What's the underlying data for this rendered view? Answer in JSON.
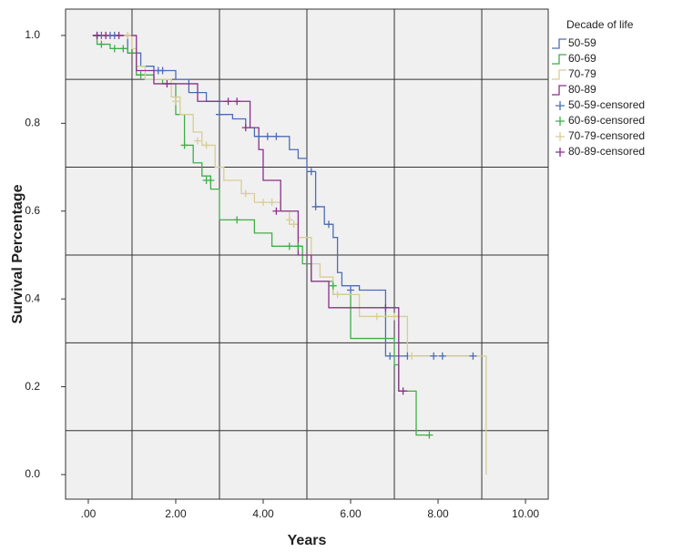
{
  "chart_data": {
    "type": "line",
    "xlabel": "Years",
    "ylabel": "Survival Percentage",
    "legend_title": "Decade of life",
    "xlim": [
      -0.52,
      10.52
    ],
    "ylim": [
      -0.056,
      1.06
    ],
    "xticks": [
      {
        "value": 0,
        "label": ".00"
      },
      {
        "value": 2,
        "label": "2.00"
      },
      {
        "value": 4,
        "label": "4.00"
      },
      {
        "value": 6,
        "label": "6.00"
      },
      {
        "value": 8,
        "label": "8.00"
      },
      {
        "value": 10,
        "label": "10.00"
      }
    ],
    "yticks": [
      {
        "value": 0,
        "label": "0.0"
      },
      0.2,
      0.4,
      0.6,
      0.8,
      {
        "value": 1,
        "label": "1.0"
      }
    ],
    "xgrid": [
      1,
      3,
      5,
      7,
      9
    ],
    "ygrid": [
      0.1,
      0.3,
      0.5,
      0.7,
      0.9
    ],
    "legend": "right",
    "series": [
      {
        "name": "50-59",
        "color": "#4d6db3",
        "mark": "line",
        "x": [
          0.1,
          0.9,
          0.9,
          1.2,
          1.2,
          1.5,
          1.5,
          2.0,
          2.0,
          2.3,
          2.3,
          2.7,
          2.7,
          3.0,
          3.0,
          3.3,
          3.3,
          3.6,
          3.6,
          3.8,
          3.8,
          4.6,
          4.6,
          4.8,
          4.8,
          5.0,
          5.0,
          5.2,
          5.2,
          5.4,
          5.4,
          5.6,
          5.6,
          5.7,
          5.7,
          5.8,
          5.8,
          6.2,
          6.2,
          6.8,
          6.8,
          8.9
        ],
        "values": [
          1.0,
          1.0,
          0.96,
          0.96,
          0.93,
          0.93,
          0.92,
          0.92,
          0.9,
          0.9,
          0.87,
          0.87,
          0.85,
          0.85,
          0.82,
          0.82,
          0.81,
          0.81,
          0.79,
          0.79,
          0.77,
          0.77,
          0.74,
          0.74,
          0.72,
          0.72,
          0.69,
          0.69,
          0.61,
          0.61,
          0.57,
          0.57,
          0.54,
          0.54,
          0.46,
          0.46,
          0.43,
          0.43,
          0.42,
          0.42,
          0.27,
          0.27
        ]
      },
      {
        "name": "60-69",
        "color": "#3fae49",
        "mark": "line",
        "x": [
          0.1,
          0.2,
          0.2,
          0.5,
          0.5,
          0.9,
          0.9,
          1.1,
          1.1,
          1.5,
          1.5,
          1.7,
          1.7,
          2.0,
          2.0,
          2.2,
          2.2,
          2.4,
          2.4,
          2.6,
          2.6,
          2.8,
          2.8,
          3.0,
          3.0,
          3.8,
          3.8,
          4.2,
          4.2,
          4.9,
          4.9,
          5.1,
          5.1,
          5.6,
          5.6,
          6.0,
          6.0,
          7.0,
          7.0,
          7.1,
          7.1,
          7.5,
          7.5,
          7.8
        ],
        "values": [
          1.0,
          1.0,
          0.98,
          0.98,
          0.97,
          0.97,
          0.96,
          0.96,
          0.91,
          0.91,
          0.9,
          0.9,
          0.89,
          0.89,
          0.82,
          0.82,
          0.75,
          0.75,
          0.71,
          0.71,
          0.68,
          0.68,
          0.65,
          0.65,
          0.58,
          0.58,
          0.55,
          0.55,
          0.52,
          0.52,
          0.48,
          0.48,
          0.44,
          0.44,
          0.41,
          0.41,
          0.31,
          0.31,
          0.25,
          0.25,
          0.19,
          0.19,
          0.09,
          0.09
        ]
      },
      {
        "name": "70-79",
        "color": "#d8cd96",
        "mark": "line",
        "x": [
          0.1,
          1.0,
          1.0,
          1.1,
          1.1,
          1.3,
          1.3,
          1.9,
          1.9,
          2.1,
          2.1,
          2.4,
          2.4,
          2.6,
          2.6,
          2.9,
          2.9,
          3.1,
          3.1,
          3.5,
          3.5,
          3.8,
          3.8,
          4.4,
          4.4,
          4.6,
          4.6,
          4.8,
          4.8,
          5.1,
          5.1,
          5.3,
          5.3,
          5.6,
          5.6,
          6.2,
          6.2,
          7.3,
          7.3,
          9.1,
          9.1
        ],
        "values": [
          1.0,
          1.0,
          0.97,
          0.97,
          0.93,
          0.93,
          0.9,
          0.9,
          0.86,
          0.86,
          0.82,
          0.82,
          0.78,
          0.78,
          0.75,
          0.75,
          0.7,
          0.7,
          0.67,
          0.67,
          0.64,
          0.64,
          0.62,
          0.62,
          0.6,
          0.6,
          0.57,
          0.57,
          0.54,
          0.54,
          0.48,
          0.48,
          0.45,
          0.45,
          0.41,
          0.41,
          0.36,
          0.36,
          0.27,
          0.27,
          0.0
        ]
      },
      {
        "name": "80-89",
        "color": "#8a2f88",
        "mark": "line",
        "x": [
          0.1,
          1.1,
          1.1,
          1.5,
          1.5,
          2.5,
          2.5,
          3.7,
          3.7,
          3.9,
          3.9,
          4.0,
          4.0,
          4.4,
          4.4,
          4.8,
          4.8,
          5.1,
          5.1,
          5.5,
          5.5,
          7.1,
          7.1,
          7.3
        ],
        "values": [
          1.0,
          1.0,
          0.92,
          0.92,
          0.89,
          0.89,
          0.85,
          0.85,
          0.79,
          0.79,
          0.74,
          0.74,
          0.67,
          0.67,
          0.6,
          0.6,
          0.5,
          0.5,
          0.44,
          0.44,
          0.38,
          0.38,
          0.19,
          0.19
        ]
      },
      {
        "name": "50-59-censored",
        "color": "#4d6db3",
        "mark": "plus",
        "x": [
          0.2,
          0.3,
          0.5,
          0.6,
          1.6,
          1.7,
          3.0,
          3.9,
          4.1,
          4.3,
          5.1,
          5.2,
          5.5,
          6.0,
          6.9,
          7.3,
          7.9,
          8.1,
          8.8
        ],
        "values": [
          1.0,
          1.0,
          1.0,
          1.0,
          0.92,
          0.92,
          0.82,
          0.77,
          0.77,
          0.77,
          0.69,
          0.61,
          0.57,
          0.42,
          0.27,
          0.27,
          0.27,
          0.27,
          0.27
        ]
      },
      {
        "name": "60-69-censored",
        "color": "#3fae49",
        "mark": "plus",
        "x": [
          0.3,
          0.6,
          0.8,
          1.2,
          2.2,
          2.7,
          2.8,
          3.4,
          4.6,
          4.8,
          5.6,
          7.8
        ],
        "values": [
          0.98,
          0.97,
          0.97,
          0.91,
          0.75,
          0.67,
          0.67,
          0.58,
          0.52,
          0.52,
          0.43,
          0.09
        ]
      },
      {
        "name": "70-79-censored",
        "color": "#d8cd96",
        "mark": "plus",
        "x": [
          0.4,
          0.9,
          2.0,
          2.5,
          2.7,
          3.6,
          4.0,
          4.2,
          4.6,
          4.7,
          5.7,
          6.6,
          7.0,
          7.4
        ],
        "values": [
          1.0,
          1.0,
          0.85,
          0.76,
          0.75,
          0.64,
          0.62,
          0.62,
          0.58,
          0.57,
          0.41,
          0.36,
          0.36,
          0.27
        ]
      },
      {
        "name": "80-89-censored",
        "color": "#8a2f88",
        "mark": "plus",
        "x": [
          0.2,
          0.4,
          0.7,
          1.8,
          3.2,
          3.4,
          3.6,
          4.3,
          6.8,
          7.2
        ],
        "values": [
          1.0,
          1.0,
          1.0,
          0.89,
          0.85,
          0.85,
          0.79,
          0.6,
          0.38,
          0.19
        ]
      }
    ]
  }
}
